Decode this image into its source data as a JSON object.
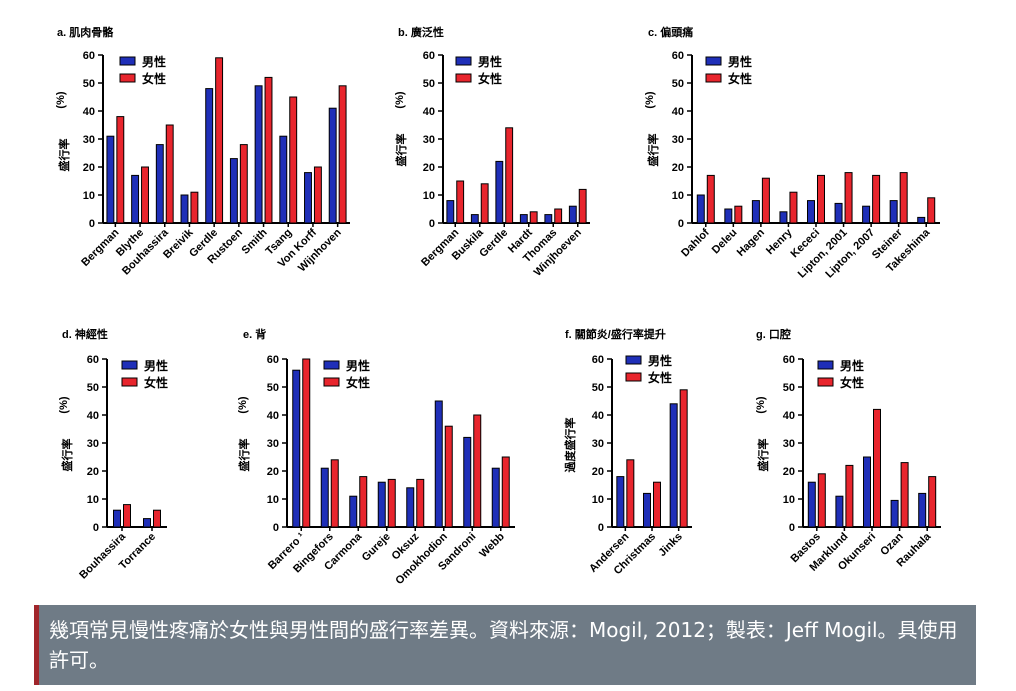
{
  "legend": {
    "male": "男性",
    "female": "女性"
  },
  "colors": {
    "male": "#1f2fb8",
    "female": "#e8252d"
  },
  "caption": "幾項常見慢性疼痛於女性與男性間的盛行率差異。資料來源：Mogil, 2012；製表：Jeff Mogil。具使用許可。",
  "chart_data": [
    {
      "type": "bar",
      "title": "a. 肌肉骨骼",
      "ylabel": "盛行率 (%)",
      "ylim": [
        0,
        60
      ],
      "yticks": [
        0,
        10,
        20,
        30,
        40,
        50,
        60
      ],
      "categories": [
        "Bergman",
        "Blythe",
        "Bouhassira",
        "Breivik",
        "Gerdle",
        "Rustoen",
        "Smith",
        "Tsang",
        "Von Korff",
        "Wijnhoven"
      ],
      "series": [
        {
          "name": "男性",
          "values": [
            31,
            17,
            28,
            10,
            48,
            23,
            49,
            31,
            18,
            41
          ]
        },
        {
          "name": "女性",
          "values": [
            38,
            20,
            35,
            11,
            59,
            28,
            52,
            45,
            20,
            49
          ]
        }
      ]
    },
    {
      "type": "bar",
      "title": "b. 廣泛性",
      "ylabel": "盛行率 (%)",
      "ylim": [
        0,
        60
      ],
      "yticks": [
        0,
        10,
        20,
        30,
        40,
        50,
        60
      ],
      "categories": [
        "Bergman",
        "Buskila",
        "Gerdle",
        "Hardt",
        "Thomas",
        "Winjhoeven"
      ],
      "series": [
        {
          "name": "男性",
          "values": [
            8,
            3,
            22,
            3,
            3,
            6
          ]
        },
        {
          "name": "女性",
          "values": [
            15,
            14,
            34,
            4,
            5,
            12
          ]
        }
      ]
    },
    {
      "type": "bar",
      "title": "c. 偏頭痛",
      "ylabel": "盛行率 (%)",
      "ylim": [
        0,
        60
      ],
      "yticks": [
        0,
        10,
        20,
        30,
        40,
        50,
        60
      ],
      "categories": [
        "Dahlof",
        "Deleu",
        "Hagen",
        "Henry",
        "Kececi",
        "Lipton, 2001",
        "Lipton, 2007",
        "Steiner",
        "Takeshima"
      ],
      "series": [
        {
          "name": "男性",
          "values": [
            10,
            5,
            8,
            4,
            8,
            7,
            6,
            8,
            2
          ]
        },
        {
          "name": "女性",
          "values": [
            17,
            6,
            16,
            11,
            17,
            18,
            17,
            18,
            9
          ]
        }
      ]
    },
    {
      "type": "bar",
      "title": "d. 神經性",
      "ylabel": "盛行率 (%)",
      "ylim": [
        0,
        60
      ],
      "yticks": [
        0,
        10,
        20,
        30,
        40,
        50,
        60
      ],
      "categories": [
        "Bouhassira",
        "Torrance"
      ],
      "series": [
        {
          "name": "男性",
          "values": [
            6,
            3
          ]
        },
        {
          "name": "女性",
          "values": [
            8,
            6
          ]
        }
      ]
    },
    {
      "type": "bar",
      "title": "e. 背",
      "ylabel": "盛行率 (%)",
      "ylim": [
        0,
        60
      ],
      "yticks": [
        0,
        10,
        20,
        30,
        40,
        50,
        60
      ],
      "categories": [
        "Barrero ¹",
        "Bingefors",
        "Carmona",
        "Gureje",
        "Oksuz",
        "Omokhodion",
        "Sandroni",
        "Webb"
      ],
      "series": [
        {
          "name": "男性",
          "values": [
            56,
            21,
            11,
            16,
            14,
            45,
            32,
            21
          ]
        },
        {
          "name": "女性",
          "values": [
            60,
            24,
            18,
            17,
            17,
            36,
            40,
            25
          ]
        }
      ]
    },
    {
      "type": "bar",
      "title": "f. 關節炎/盛行率提升",
      "ylabel": "過度盛行率",
      "ylim": [
        0,
        60
      ],
      "yticks": [
        0,
        10,
        20,
        30,
        40,
        50,
        60
      ],
      "categories": [
        "Andersen",
        "Christmas",
        "Jinks"
      ],
      "series": [
        {
          "name": "男性",
          "values": [
            18,
            12,
            44
          ]
        },
        {
          "name": "女性",
          "values": [
            24,
            16,
            49
          ]
        }
      ]
    },
    {
      "type": "bar",
      "title": "g. 口腔",
      "ylabel": "盛行率 (%)",
      "ylim": [
        0,
        60
      ],
      "yticks": [
        0,
        10,
        20,
        30,
        40,
        50,
        60
      ],
      "categories": [
        "Bastos",
        "Marklund",
        "Okunseri",
        "Ozan",
        "Rauhala"
      ],
      "series": [
        {
          "name": "男性",
          "values": [
            16,
            11,
            25,
            9.5,
            12
          ]
        },
        {
          "name": "女性",
          "values": [
            19,
            22,
            42,
            23,
            18
          ]
        }
      ]
    }
  ]
}
